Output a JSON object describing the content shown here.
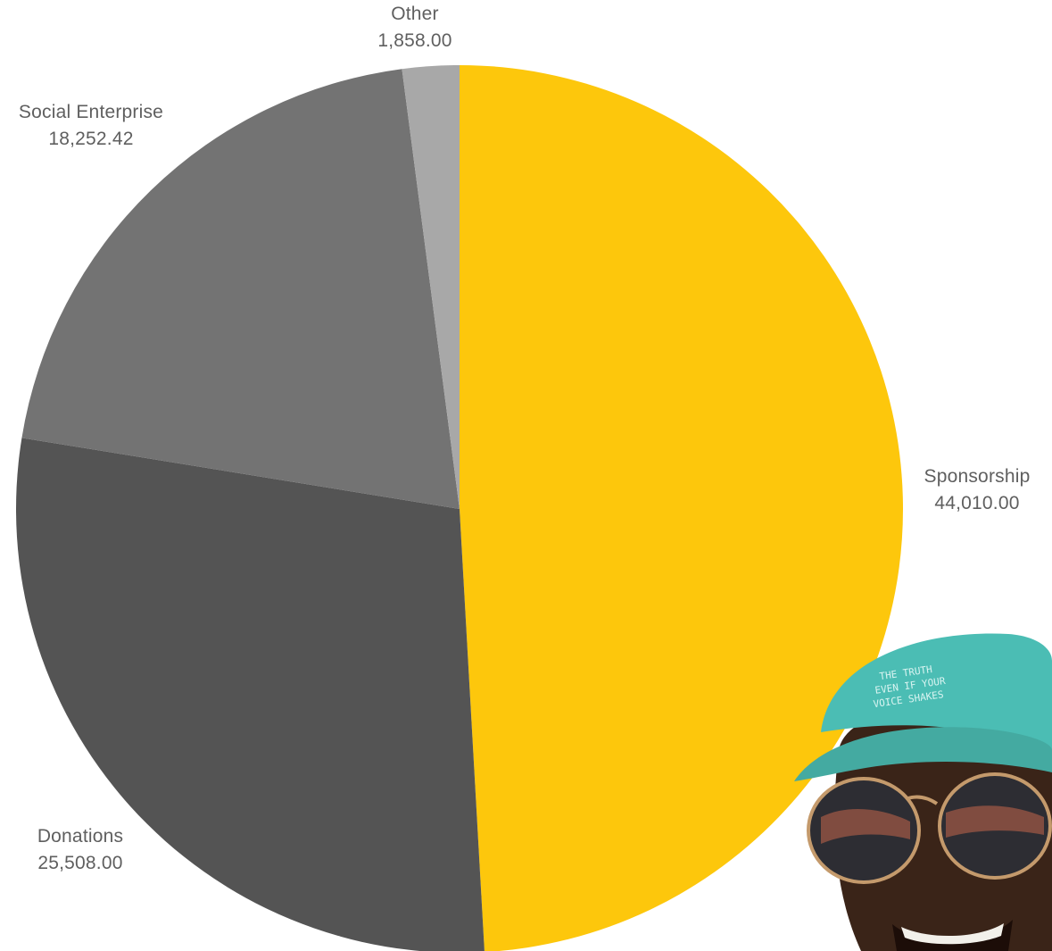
{
  "chart_data": {
    "type": "pie",
    "title": "",
    "start_angle_deg": 0,
    "direction": "clockwise",
    "slices": [
      {
        "label": "Sponsorship",
        "value": 44010.0,
        "display_value": "44,010.00",
        "color": "#FDC70C"
      },
      {
        "label": "Donations",
        "value": 25508.0,
        "display_value": "25,508.00",
        "color": "#545454"
      },
      {
        "label": "Social Enterprise",
        "value": 18252.42,
        "display_value": "18,252.42",
        "color": "#737373"
      },
      {
        "label": "Other",
        "value": 1858.0,
        "display_value": "1,858.00",
        "color": "#A8A8A8"
      }
    ],
    "legend": "none",
    "labels_outside": true
  },
  "photo": {
    "cap_text": "THE TRUTH EVEN IF YOUR VOICE SHAKES",
    "cap_color": "#4BBDB4"
  }
}
